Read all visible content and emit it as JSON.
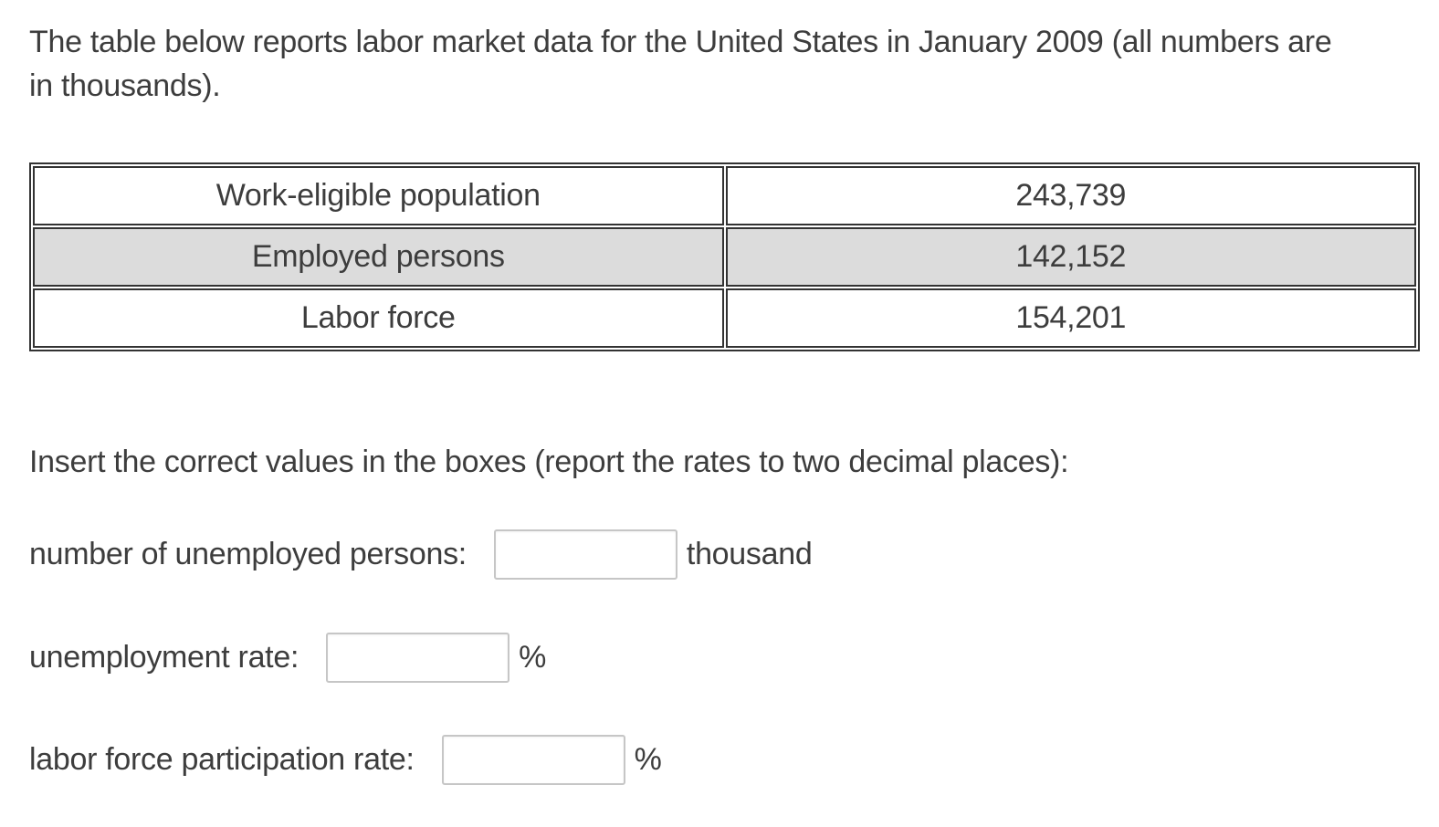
{
  "intro": {
    "lines": [
      "The table below reports labor market data for the United States in January 2009 (all numbers are",
      "in thousands)."
    ]
  },
  "table": {
    "rows": [
      {
        "label": "Work-eligible population",
        "value": "243,739",
        "highlighted": false
      },
      {
        "label": "Employed persons",
        "value": "142,152",
        "highlighted": true
      },
      {
        "label": "Labor force",
        "value": "154,201",
        "highlighted": false
      }
    ]
  },
  "instructions": "Insert the correct values in the boxes (report the rates to two decimal places):",
  "questions": [
    {
      "label": "number of unemployed persons:",
      "value": "",
      "suffix": "thousand"
    },
    {
      "label": "unemployment rate:",
      "value": "",
      "suffix": "%"
    },
    {
      "label": "labor force participation rate:",
      "value": "",
      "suffix": "%"
    }
  ],
  "colors": {
    "text": "#3d3d3d",
    "table_border": "#333333",
    "highlight_row_bg": "#dcdcdc",
    "input_border": "#c6c6c6",
    "page_bg": "#ffffff"
  }
}
